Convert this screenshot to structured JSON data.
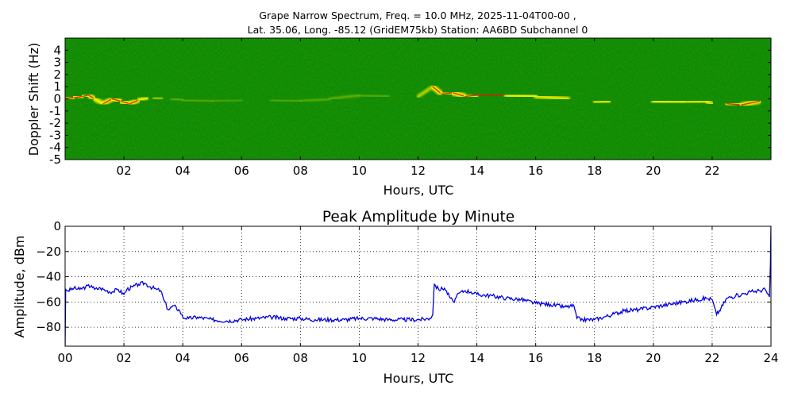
{
  "figure": {
    "title_line1": "Grape Narrow Spectrum, Freq. = 10.0 MHz, 2025-11-04T00-00 ,",
    "title_line2": "Lat.  35.06, Long. -85.12 (GridEM75kb) Station: AA6BD Subchannel 0"
  },
  "chart_data": [
    {
      "type": "heatmap",
      "title": "",
      "xlabel": "Hours, UTC",
      "ylabel": "Doppler Shift (Hz)",
      "xlim": [
        0,
        24
      ],
      "ylim": [
        -5,
        5
      ],
      "x_ticks": [
        "02",
        "04",
        "06",
        "08",
        "10",
        "12",
        "14",
        "16",
        "18",
        "20",
        "22"
      ],
      "x_tick_values": [
        2,
        4,
        6,
        8,
        10,
        12,
        14,
        16,
        18,
        20,
        22
      ],
      "y_ticks": [
        "4",
        "3",
        "2",
        "1",
        "0",
        "-1",
        "-2",
        "-3",
        "-4",
        "-5"
      ],
      "y_tick_values": [
        4,
        3,
        2,
        1,
        0,
        -1,
        -2,
        -3,
        -4,
        -5
      ],
      "colors": {
        "background": "#118a00",
        "signal": "#f5f000",
        "peak": "#e01a00"
      },
      "doppler_trace": {
        "hours": [
          0,
          0.3,
          0.6,
          0.8,
          1.0,
          1.3,
          1.6,
          1.9,
          2.2,
          2.5,
          2.8,
          3.0,
          3.3,
          3.6,
          4.0,
          5.0,
          6.0,
          7.0,
          8.0,
          9.0,
          10.0,
          11.0,
          12.0,
          12.5,
          12.8,
          13.2,
          13.6,
          14.0,
          15.0,
          16.0,
          17.1,
          17.3,
          18.0,
          18.5,
          19.0,
          20.0,
          21.0,
          21.8,
          22.0,
          22.5,
          23.0,
          23.6
        ],
        "doppler": [
          0.0,
          0.1,
          0.2,
          0.3,
          0.0,
          -0.4,
          0.0,
          -0.2,
          -0.4,
          -0.1,
          0.1,
          0.1,
          0.0,
          0.0,
          -0.1,
          -0.2,
          -0.1,
          -0.1,
          -0.2,
          0.0,
          0.3,
          0.2,
          0.2,
          1.0,
          0.4,
          0.5,
          0.2,
          0.3,
          0.3,
          0.2,
          0.0,
          null,
          -0.3,
          -0.2,
          -0.2,
          -0.2,
          -0.3,
          -0.2,
          -0.4,
          -0.4,
          -0.5,
          -0.2
        ],
        "intensity": [
          0.7,
          0.9,
          1.0,
          0.9,
          0.7,
          0.8,
          0.8,
          0.9,
          0.9,
          0.8,
          0.6,
          0.5,
          0.3,
          0.2,
          0.15,
          0.1,
          0.1,
          0.1,
          0.12,
          0.15,
          0.2,
          0.1,
          0.05,
          0.9,
          0.9,
          0.9,
          1.0,
          0.9,
          0.8,
          0.7,
          0.6,
          0.0,
          0.6,
          0.7,
          0.7,
          0.7,
          0.7,
          0.6,
          0.7,
          0.8,
          0.9,
          0.7
        ]
      }
    },
    {
      "type": "line",
      "title": "Peak Amplitude by Minute",
      "xlabel": "Hours, UTC",
      "ylabel": "Amplitude, dBm",
      "xlim": [
        0,
        24
      ],
      "ylim": [
        -95,
        0
      ],
      "grid": true,
      "x_ticks": [
        "00",
        "02",
        "04",
        "06",
        "08",
        "10",
        "12",
        "14",
        "16",
        "18",
        "20",
        "22",
        "24"
      ],
      "x_tick_values": [
        0,
        2,
        4,
        6,
        8,
        10,
        12,
        14,
        16,
        18,
        20,
        22,
        24
      ],
      "y_ticks": [
        "0",
        "−20",
        "−40",
        "−60",
        "−80"
      ],
      "y_tick_values": [
        0,
        -20,
        -40,
        -60,
        -80
      ],
      "line_color": "#0000e0",
      "series": [
        {
          "x": [
            0.0,
            0.02,
            0.1,
            0.3,
            0.5,
            0.7,
            0.9,
            1.0,
            1.2,
            1.4,
            1.6,
            1.8,
            2.0,
            2.1,
            2.3,
            2.5,
            2.7,
            2.9,
            3.1,
            3.25,
            3.35,
            3.5,
            3.7,
            3.9,
            4.0,
            4.2,
            4.5,
            5.0,
            5.5,
            6.0,
            6.5,
            7.0,
            7.5,
            8.0,
            8.5,
            9.0,
            9.5,
            10.0,
            10.5,
            11.0,
            11.5,
            12.0,
            12.4,
            12.5,
            12.55,
            12.7,
            12.9,
            13.1,
            13.2,
            13.4,
            13.6,
            13.8,
            14.0,
            14.5,
            15.0,
            15.5,
            16.0,
            16.5,
            17.0,
            17.3,
            17.4,
            17.6,
            18.0,
            18.3,
            18.6,
            19.0,
            19.5,
            20.0,
            20.5,
            21.0,
            21.5,
            21.8,
            22.0,
            22.15,
            22.3,
            22.5,
            22.8,
            23.0,
            23.3,
            23.6,
            23.8,
            23.95,
            23.98,
            24.0
          ],
          "y": [
            -95,
            -50,
            -51,
            -49,
            -50,
            -48,
            -47,
            -50,
            -49,
            -51,
            -52,
            -50,
            -54,
            -50,
            -48,
            -46,
            -45,
            -48,
            -50,
            -51,
            -58,
            -66,
            -63,
            -67,
            -72,
            -73,
            -72,
            -74,
            -75,
            -74,
            -73,
            -72,
            -73,
            -73,
            -74,
            -74,
            -74,
            -73,
            -73,
            -74,
            -74,
            -74,
            -73,
            -70,
            -46,
            -50,
            -49,
            -57,
            -60,
            -53,
            -51,
            -52,
            -54,
            -55,
            -57,
            -58,
            -61,
            -62,
            -64,
            -63,
            -73,
            -74,
            -74,
            -72,
            -70,
            -67,
            -66,
            -64,
            -62,
            -60,
            -58,
            -57,
            -58,
            -70,
            -65,
            -57,
            -55,
            -54,
            -52,
            -51,
            -50,
            -56,
            -30,
            0
          ]
        }
      ]
    }
  ]
}
